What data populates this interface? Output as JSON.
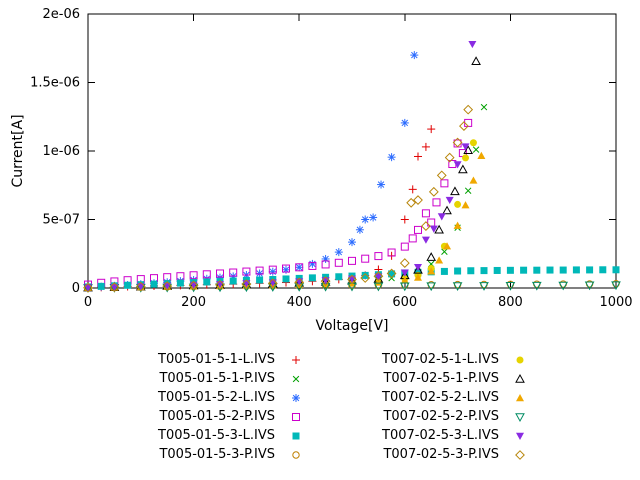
{
  "window": {
    "background": "#ffffff"
  },
  "chart_data": {
    "type": "scatter",
    "title": "",
    "xlabel": "Voltage[V]",
    "ylabel": "Current[A]",
    "xlim": [
      0,
      1000
    ],
    "ylim": [
      0,
      2e-06
    ],
    "xtick_values": [
      0,
      200,
      400,
      600,
      800,
      1000
    ],
    "xtick_labels": [
      "0",
      "200",
      "400",
      "600",
      "800",
      "1000"
    ],
    "ytick_values": [
      0,
      5e-07,
      1e-06,
      1.5e-06,
      2e-06
    ],
    "ytick_labels": [
      "0",
      "5e-07",
      "1e-06",
      "1.5e-06",
      "2e-06"
    ],
    "grid": false,
    "legend_position": "bottom",
    "legend_columns": 2,
    "point_unit": "nA",
    "point_scale": 1e-09,
    "series": [
      {
        "label": "T005-01-5-1-L.IVS",
        "marker": "plus",
        "color": "#e00000",
        "points": [
          [
            0,
            3
          ],
          [
            25,
            5
          ],
          [
            50,
            8
          ],
          [
            75,
            11
          ],
          [
            100,
            13
          ],
          [
            125,
            15
          ],
          [
            150,
            17
          ],
          [
            175,
            19
          ],
          [
            200,
            21
          ],
          [
            225,
            24
          ],
          [
            250,
            26
          ],
          [
            275,
            28
          ],
          [
            300,
            31
          ],
          [
            325,
            34
          ],
          [
            350,
            37
          ],
          [
            375,
            40
          ],
          [
            400,
            44
          ],
          [
            425,
            49
          ],
          [
            450,
            55
          ],
          [
            475,
            63
          ],
          [
            500,
            73
          ],
          [
            525,
            92
          ],
          [
            550,
            135
          ],
          [
            575,
            235
          ],
          [
            600,
            500
          ],
          [
            615,
            720
          ],
          [
            625,
            960
          ],
          [
            640,
            1030
          ],
          [
            650,
            1160
          ]
        ]
      },
      {
        "label": "T005-01-5-1-P.IVS",
        "marker": "cross",
        "color": "#00a000",
        "points": [
          [
            0,
            2
          ],
          [
            50,
            6
          ],
          [
            100,
            11
          ],
          [
            150,
            16
          ],
          [
            200,
            20
          ],
          [
            250,
            24
          ],
          [
            300,
            28
          ],
          [
            350,
            33
          ],
          [
            400,
            38
          ],
          [
            450,
            44
          ],
          [
            500,
            52
          ],
          [
            550,
            62
          ],
          [
            575,
            72
          ],
          [
            600,
            88
          ],
          [
            625,
            118
          ],
          [
            650,
            175
          ],
          [
            675,
            265
          ],
          [
            700,
            440
          ],
          [
            720,
            710
          ],
          [
            735,
            1010
          ],
          [
            750,
            1320
          ]
        ]
      },
      {
        "label": "T005-01-5-2-L.IVS",
        "marker": "star",
        "color": "#2b6bff",
        "points": [
          [
            0,
            4
          ],
          [
            25,
            10
          ],
          [
            50,
            16
          ],
          [
            75,
            22
          ],
          [
            100,
            28
          ],
          [
            125,
            35
          ],
          [
            150,
            42
          ],
          [
            175,
            50
          ],
          [
            200,
            58
          ],
          [
            225,
            67
          ],
          [
            250,
            76
          ],
          [
            275,
            85
          ],
          [
            300,
            95
          ],
          [
            325,
            106
          ],
          [
            350,
            119
          ],
          [
            375,
            133
          ],
          [
            400,
            151
          ],
          [
            425,
            176
          ],
          [
            450,
            212
          ],
          [
            475,
            262
          ],
          [
            500,
            335
          ],
          [
            515,
            425
          ],
          [
            525,
            500
          ],
          [
            540,
            515
          ],
          [
            555,
            755
          ],
          [
            575,
            955
          ],
          [
            600,
            1205
          ],
          [
            618,
            1700
          ]
        ]
      },
      {
        "label": "T005-01-5-2-P.IVS",
        "marker": "square-open",
        "color": "#cc00cc",
        "points": [
          [
            0,
            25
          ],
          [
            25,
            38
          ],
          [
            50,
            48
          ],
          [
            75,
            57
          ],
          [
            100,
            65
          ],
          [
            125,
            72
          ],
          [
            150,
            79
          ],
          [
            175,
            86
          ],
          [
            200,
            93
          ],
          [
            225,
            100
          ],
          [
            250,
            106
          ],
          [
            275,
            113
          ],
          [
            300,
            120
          ],
          [
            325,
            127
          ],
          [
            350,
            134
          ],
          [
            375,
            142
          ],
          [
            400,
            151
          ],
          [
            425,
            161
          ],
          [
            450,
            172
          ],
          [
            475,
            184
          ],
          [
            500,
            198
          ],
          [
            525,
            214
          ],
          [
            550,
            233
          ],
          [
            575,
            259
          ],
          [
            600,
            302
          ],
          [
            615,
            362
          ],
          [
            625,
            424
          ],
          [
            640,
            545
          ],
          [
            650,
            478
          ],
          [
            660,
            625
          ],
          [
            675,
            764
          ],
          [
            690,
            905
          ],
          [
            700,
            1055
          ],
          [
            710,
            985
          ],
          [
            720,
            1205
          ]
        ]
      },
      {
        "label": "T005-01-5-3-L.IVS",
        "marker": "square-filled",
        "color": "#00b8b8",
        "points": [
          [
            0,
            8
          ],
          [
            25,
            12
          ],
          [
            50,
            16
          ],
          [
            75,
            20
          ],
          [
            100,
            24
          ],
          [
            125,
            28
          ],
          [
            150,
            32
          ],
          [
            175,
            36
          ],
          [
            200,
            40
          ],
          [
            225,
            44
          ],
          [
            250,
            47
          ],
          [
            275,
            51
          ],
          [
            300,
            55
          ],
          [
            325,
            58
          ],
          [
            350,
            62
          ],
          [
            375,
            66
          ],
          [
            400,
            70
          ],
          [
            425,
            74
          ],
          [
            450,
            78
          ],
          [
            475,
            82
          ],
          [
            500,
            87
          ],
          [
            525,
            92
          ],
          [
            550,
            97
          ],
          [
            575,
            103
          ],
          [
            600,
            110
          ],
          [
            625,
            114
          ],
          [
            650,
            118
          ],
          [
            675,
            121
          ],
          [
            700,
            124
          ],
          [
            725,
            126
          ],
          [
            750,
            127
          ],
          [
            775,
            128
          ],
          [
            800,
            129
          ],
          [
            825,
            130
          ],
          [
            850,
            130
          ],
          [
            875,
            131
          ],
          [
            900,
            131
          ],
          [
            925,
            132
          ],
          [
            950,
            132
          ],
          [
            975,
            133
          ],
          [
            1000,
            133
          ]
        ]
      },
      {
        "label": "T005-01-5-3-P.IVS",
        "marker": "circle-open",
        "color": "#c08000",
        "points": [
          [
            0,
            3
          ],
          [
            50,
            5
          ],
          [
            100,
            7
          ],
          [
            150,
            9
          ],
          [
            200,
            10
          ],
          [
            250,
            12
          ],
          [
            300,
            13
          ],
          [
            350,
            15
          ],
          [
            400,
            16
          ],
          [
            450,
            18
          ],
          [
            500,
            19
          ],
          [
            550,
            21
          ],
          [
            600,
            22
          ],
          [
            650,
            24
          ],
          [
            700,
            25
          ],
          [
            750,
            26
          ],
          [
            800,
            27
          ],
          [
            850,
            28
          ],
          [
            900,
            29
          ],
          [
            950,
            30
          ],
          [
            1000,
            31
          ]
        ]
      },
      {
        "label": "T007-02-5-1-L.IVS",
        "marker": "circle-filled",
        "color": "#e6d400",
        "points": [
          [
            0,
            2
          ],
          [
            50,
            5
          ],
          [
            100,
            8
          ],
          [
            150,
            11
          ],
          [
            200,
            14
          ],
          [
            250,
            17
          ],
          [
            300,
            21
          ],
          [
            350,
            25
          ],
          [
            400,
            29
          ],
          [
            450,
            34
          ],
          [
            500,
            41
          ],
          [
            550,
            51
          ],
          [
            600,
            68
          ],
          [
            625,
            92
          ],
          [
            650,
            142
          ],
          [
            675,
            305
          ],
          [
            700,
            610
          ],
          [
            715,
            950
          ],
          [
            730,
            1060
          ]
        ]
      },
      {
        "label": "T007-02-5-1-P.IVS",
        "marker": "triangle-up-open",
        "color": "#000000",
        "points": [
          [
            0,
            2
          ],
          [
            50,
            5
          ],
          [
            100,
            9
          ],
          [
            150,
            13
          ],
          [
            200,
            17
          ],
          [
            250,
            21
          ],
          [
            300,
            26
          ],
          [
            350,
            31
          ],
          [
            400,
            37
          ],
          [
            450,
            44
          ],
          [
            500,
            53
          ],
          [
            550,
            66
          ],
          [
            600,
            92
          ],
          [
            625,
            132
          ],
          [
            650,
            225
          ],
          [
            665,
            425
          ],
          [
            680,
            565
          ],
          [
            695,
            705
          ],
          [
            710,
            865
          ],
          [
            720,
            1005
          ],
          [
            735,
            1655
          ]
        ]
      },
      {
        "label": "T007-02-5-2-L.IVS",
        "marker": "triangle-up-filled",
        "color": "#f0a800",
        "points": [
          [
            0,
            2
          ],
          [
            50,
            4
          ],
          [
            100,
            7
          ],
          [
            150,
            10
          ],
          [
            200,
            12
          ],
          [
            250,
            15
          ],
          [
            300,
            18
          ],
          [
            350,
            21
          ],
          [
            400,
            24
          ],
          [
            450,
            28
          ],
          [
            500,
            33
          ],
          [
            550,
            41
          ],
          [
            600,
            56
          ],
          [
            625,
            76
          ],
          [
            650,
            122
          ],
          [
            665,
            202
          ],
          [
            680,
            305
          ],
          [
            700,
            455
          ],
          [
            715,
            605
          ],
          [
            730,
            785
          ],
          [
            745,
            965
          ]
        ]
      },
      {
        "label": "T007-02-5-2-P.IVS",
        "marker": "triangle-down-open",
        "color": "#008c64",
        "points": [
          [
            0,
            1
          ],
          [
            50,
            2
          ],
          [
            100,
            3
          ],
          [
            150,
            4
          ],
          [
            200,
            5
          ],
          [
            250,
            6
          ],
          [
            300,
            7
          ],
          [
            350,
            8
          ],
          [
            400,
            9
          ],
          [
            450,
            10
          ],
          [
            500,
            11
          ],
          [
            550,
            12
          ],
          [
            600,
            13
          ],
          [
            650,
            14
          ],
          [
            700,
            15
          ],
          [
            750,
            16
          ],
          [
            800,
            17
          ],
          [
            850,
            18
          ],
          [
            900,
            19
          ],
          [
            950,
            20
          ],
          [
            1000,
            21
          ]
        ]
      },
      {
        "label": "T007-02-5-3-L.IVS",
        "marker": "triangle-down-filled",
        "color": "#8a2be2",
        "points": [
          [
            0,
            3
          ],
          [
            50,
            7
          ],
          [
            100,
            12
          ],
          [
            150,
            17
          ],
          [
            200,
            22
          ],
          [
            250,
            28
          ],
          [
            300,
            34
          ],
          [
            350,
            40
          ],
          [
            400,
            47
          ],
          [
            450,
            56
          ],
          [
            500,
            67
          ],
          [
            550,
            83
          ],
          [
            600,
            112
          ],
          [
            625,
            152
          ],
          [
            640,
            352
          ],
          [
            655,
            432
          ],
          [
            670,
            522
          ],
          [
            685,
            642
          ],
          [
            700,
            902
          ],
          [
            715,
            1032
          ],
          [
            728,
            1780
          ]
        ]
      },
      {
        "label": "T007-02-5-3-P.IVS",
        "marker": "diamond-open",
        "color": "#b8860b",
        "points": [
          [
            0,
            2
          ],
          [
            50,
            6
          ],
          [
            100,
            10
          ],
          [
            150,
            14
          ],
          [
            200,
            18
          ],
          [
            250,
            23
          ],
          [
            300,
            28
          ],
          [
            350,
            34
          ],
          [
            400,
            41
          ],
          [
            450,
            50
          ],
          [
            500,
            62
          ],
          [
            525,
            73
          ],
          [
            550,
            86
          ],
          [
            575,
            106
          ],
          [
            600,
            182
          ],
          [
            612,
            622
          ],
          [
            625,
            642
          ],
          [
            640,
            452
          ],
          [
            655,
            702
          ],
          [
            670,
            822
          ],
          [
            685,
            952
          ],
          [
            700,
            1062
          ],
          [
            712,
            1182
          ],
          [
            720,
            1302
          ]
        ]
      }
    ]
  }
}
